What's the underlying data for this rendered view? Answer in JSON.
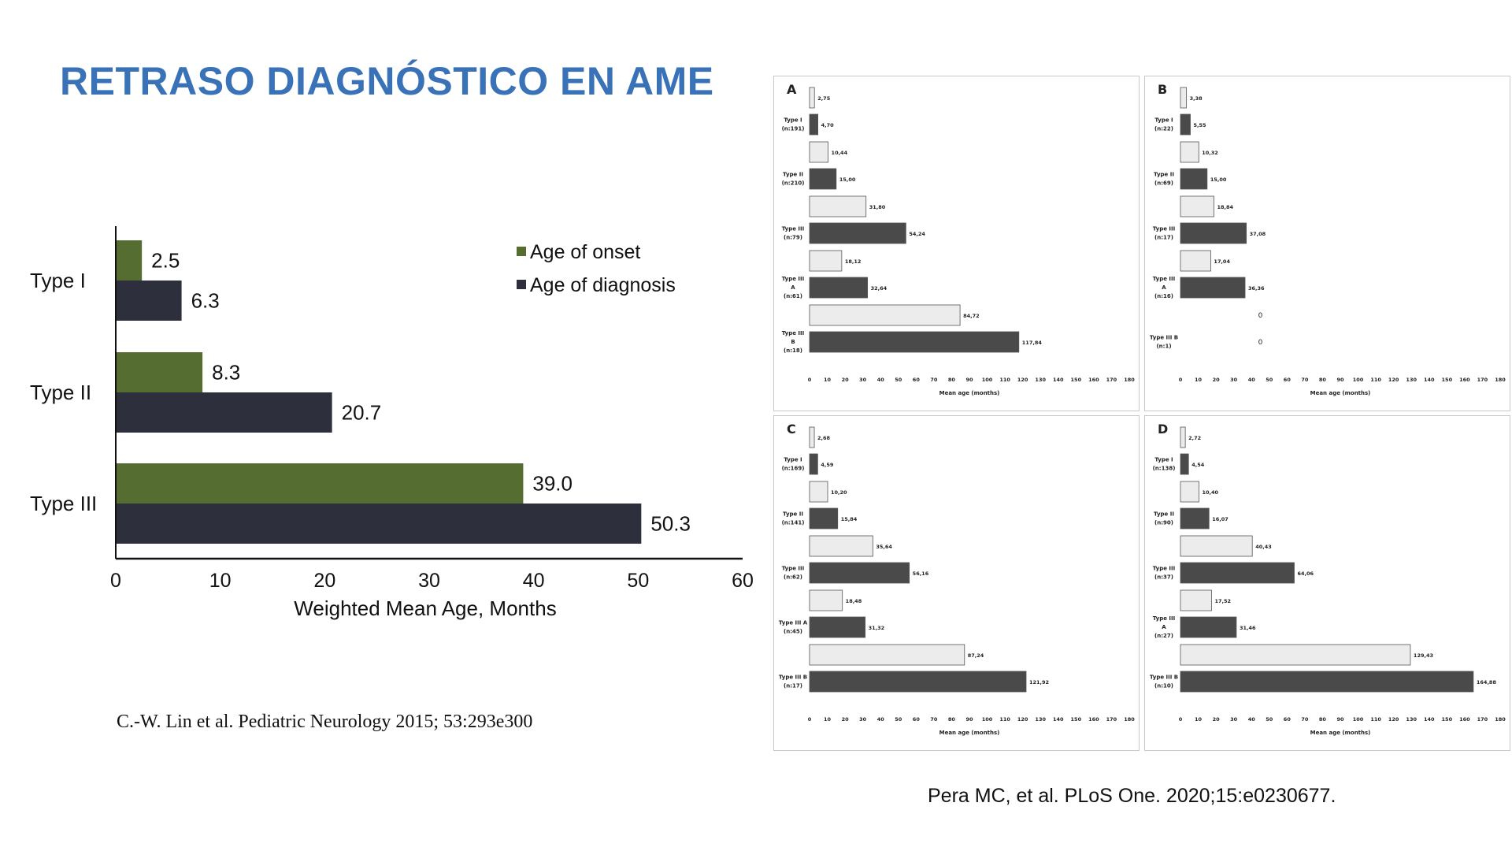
{
  "title": "RETRASO DIAGNÓSTICO EN AME",
  "citation_left": "C.-W. Lin et al. Pediatric Neurology 2015; 53:293e300",
  "citation_right": "Pera MC, et al. PLoS One. 2020;15:e0230677.",
  "colors": {
    "title": "#3a72b8",
    "onset": "#566d31",
    "diagnosis": "#2d2f3d",
    "panel_light": "#ececec",
    "panel_dark": "#4a4a4a"
  },
  "chart_data": [
    {
      "type": "bar",
      "orientation": "horizontal",
      "categories": [
        "Type I",
        "Type II",
        "Type III"
      ],
      "series": [
        {
          "name": "Age of onset",
          "values": [
            2.5,
            8.3,
            39.0
          ],
          "labels": [
            "2.5",
            "8.3",
            "39.0"
          ]
        },
        {
          "name": "Age of diagnosis",
          "values": [
            6.3,
            20.7,
            50.3
          ],
          "labels": [
            "6.3",
            "20.7",
            "50.3"
          ]
        }
      ],
      "xlabel": "Weighted Mean Age, Months",
      "xlim": [
        0,
        60
      ],
      "xticks": [
        "0",
        "10",
        "20",
        "30",
        "40",
        "50",
        "60"
      ],
      "legend_position": "top-right"
    },
    {
      "type": "bar",
      "orientation": "horizontal",
      "panel": "A",
      "xlabel": "Mean age (months)",
      "xlim": [
        0,
        180
      ],
      "xticks": [
        "0",
        "10",
        "20",
        "30",
        "40",
        "50",
        "60",
        "70",
        "80",
        "90",
        "100",
        "110",
        "120",
        "130",
        "140",
        "150",
        "160",
        "170",
        "180"
      ],
      "groups": [
        {
          "label": [
            "Type I",
            "(n:191)"
          ],
          "bars": [
            {
              "value": 2.75,
              "label": "2,75"
            },
            {
              "value": 4.7,
              "label": "4,70"
            }
          ]
        },
        {
          "label": [
            "Type II",
            "(n:210)"
          ],
          "bars": [
            {
              "value": 10.44,
              "label": "10,44"
            },
            {
              "value": 15.0,
              "label": "15,00"
            }
          ]
        },
        {
          "label": [
            "Type III",
            "(n:79)"
          ],
          "bars": [
            {
              "value": 31.8,
              "label": "31,80"
            },
            {
              "value": 54.24,
              "label": "54,24"
            }
          ]
        },
        {
          "label": [
            "Type III",
            "A",
            "(n:61)"
          ],
          "bars": [
            {
              "value": 18.12,
              "label": "18,12"
            },
            {
              "value": 32.64,
              "label": "32,64"
            }
          ]
        },
        {
          "label": [
            "Type III",
            "B",
            "(n:18)"
          ],
          "bars": [
            {
              "value": 84.72,
              "label": "84,72"
            },
            {
              "value": 117.84,
              "label": "117,84"
            }
          ]
        }
      ]
    },
    {
      "type": "bar",
      "orientation": "horizontal",
      "panel": "B",
      "xlabel": "Mean age (months)",
      "xlim": [
        0,
        180
      ],
      "xticks": [
        "0",
        "10",
        "20",
        "30",
        "40",
        "50",
        "60",
        "70",
        "80",
        "90",
        "100",
        "110",
        "120",
        "130",
        "140",
        "150",
        "160",
        "170",
        "180"
      ],
      "groups": [
        {
          "label": [
            "Type I",
            "(n:22)"
          ],
          "bars": [
            {
              "value": 3.38,
              "label": "3,38"
            },
            {
              "value": 5.55,
              "label": "5,55"
            }
          ]
        },
        {
          "label": [
            "Type II",
            "(n:69)"
          ],
          "bars": [
            {
              "value": 10.32,
              "label": "10,32"
            },
            {
              "value": 15.0,
              "label": "15,00"
            }
          ]
        },
        {
          "label": [
            "Type III",
            "(n:17)"
          ],
          "bars": [
            {
              "value": 18.84,
              "label": "18,84"
            },
            {
              "value": 37.08,
              "label": "37,08"
            }
          ]
        },
        {
          "label": [
            "Type III",
            "A",
            "(n:16)"
          ],
          "bars": [
            {
              "value": 17.04,
              "label": "17,04"
            },
            {
              "value": 36.36,
              "label": "36,36"
            }
          ]
        },
        {
          "label": [
            "Type III B",
            "(n:1)"
          ],
          "bars": [
            {
              "value": 0,
              "label": "0"
            },
            {
              "value": 0,
              "label": "0"
            }
          ]
        }
      ]
    },
    {
      "type": "bar",
      "orientation": "horizontal",
      "panel": "C",
      "xlabel": "Mean age (months)",
      "xlim": [
        0,
        180
      ],
      "xticks": [
        "0",
        "10",
        "20",
        "30",
        "40",
        "50",
        "60",
        "70",
        "80",
        "90",
        "100",
        "110",
        "120",
        "130",
        "140",
        "150",
        "160",
        "170",
        "180"
      ],
      "groups": [
        {
          "label": [
            "Type I",
            "(n:169)"
          ],
          "bars": [
            {
              "value": 2.68,
              "label": "2,68"
            },
            {
              "value": 4.59,
              "label": "4,59"
            }
          ]
        },
        {
          "label": [
            "Type II",
            "(n:141)"
          ],
          "bars": [
            {
              "value": 10.2,
              "label": "10,20"
            },
            {
              "value": 15.84,
              "label": "15,84"
            }
          ]
        },
        {
          "label": [
            "Type III",
            "(n:62)"
          ],
          "bars": [
            {
              "value": 35.64,
              "label": "35,64"
            },
            {
              "value": 56.16,
              "label": "56,16"
            }
          ]
        },
        {
          "label": [
            "Type III A",
            "(n:45)"
          ],
          "bars": [
            {
              "value": 18.48,
              "label": "18,48"
            },
            {
              "value": 31.32,
              "label": "31,32"
            }
          ]
        },
        {
          "label": [
            "Type III B",
            "(n:17)"
          ],
          "bars": [
            {
              "value": 87.24,
              "label": "87,24"
            },
            {
              "value": 121.92,
              "label": "121,92"
            }
          ]
        }
      ]
    },
    {
      "type": "bar",
      "orientation": "horizontal",
      "panel": "D",
      "xlabel": "Mean age (months)",
      "xlim": [
        0,
        180
      ],
      "xticks": [
        "0",
        "10",
        "20",
        "30",
        "40",
        "50",
        "60",
        "70",
        "80",
        "90",
        "100",
        "110",
        "120",
        "130",
        "140",
        "150",
        "160",
        "170",
        "180"
      ],
      "groups": [
        {
          "label": [
            "Type I",
            "(n:138)"
          ],
          "bars": [
            {
              "value": 2.72,
              "label": "2,72"
            },
            {
              "value": 4.54,
              "label": "4,54"
            }
          ]
        },
        {
          "label": [
            "Type II",
            "(n:90)"
          ],
          "bars": [
            {
              "value": 10.4,
              "label": "10,40"
            },
            {
              "value": 16.07,
              "label": "16,07"
            }
          ]
        },
        {
          "label": [
            "Type III",
            "(n:37)"
          ],
          "bars": [
            {
              "value": 40.43,
              "label": "40,43"
            },
            {
              "value": 64.06,
              "label": "64,06"
            }
          ]
        },
        {
          "label": [
            "Type III",
            "A",
            "(n:27)"
          ],
          "bars": [
            {
              "value": 17.52,
              "label": "17,52"
            },
            {
              "value": 31.46,
              "label": "31,46"
            }
          ]
        },
        {
          "label": [
            "Type III B",
            "(n:10)"
          ],
          "bars": [
            {
              "value": 129.43,
              "label": "129,43"
            },
            {
              "value": 164.88,
              "label": "164,88"
            }
          ]
        }
      ]
    }
  ]
}
